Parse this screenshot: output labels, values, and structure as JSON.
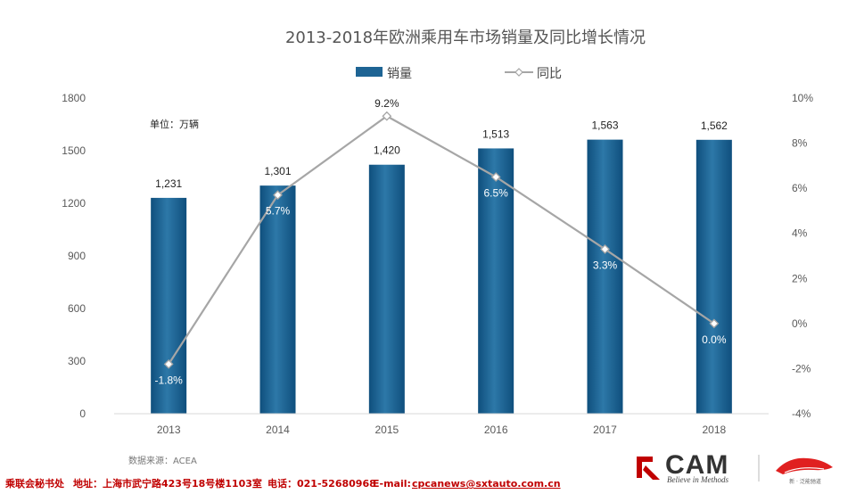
{
  "chart_data": {
    "type": "bar+line",
    "title": "2013-2018年欧洲乘用车市场销量及同比增长情况",
    "unit_label": "单位：万辆",
    "categories": [
      "2013",
      "2014",
      "2015",
      "2016",
      "2017",
      "2018"
    ],
    "series": [
      {
        "name": "销量",
        "type": "bar",
        "axis": "left",
        "values": [
          1231,
          1301,
          1420,
          1513,
          1563,
          1562
        ],
        "labels": [
          "1,231",
          "1,301",
          "1,420",
          "1,513",
          "1,563",
          "1,562"
        ],
        "color": "#1e6494"
      },
      {
        "name": "同比",
        "type": "line",
        "axis": "right",
        "values": [
          -1.8,
          5.7,
          9.2,
          6.5,
          3.3,
          0.0
        ],
        "labels": [
          "-1.8%",
          "5.7%",
          "9.2%",
          "6.5%",
          "3.3%",
          "0.0%"
        ],
        "color": "#a6a6a6"
      }
    ],
    "y_left": {
      "ylim": [
        0,
        1800
      ],
      "ticks": [
        "0",
        "300",
        "600",
        "900",
        "1200",
        "1500",
        "1800"
      ]
    },
    "y_right": {
      "ylim": [
        -4,
        10
      ],
      "ticks": [
        "-4%",
        "-2%",
        "0%",
        "2%",
        "4%",
        "6%",
        "8%",
        "10%"
      ]
    },
    "grid": false,
    "legend": "top-center"
  },
  "source_note": "数据来源：ACEA",
  "footer": {
    "org": "乘联会秘书处",
    "address": "地址：上海市武宁路423号18号楼1103室",
    "phone": "电话：021-52680968",
    "email_label": "E-mail:",
    "email": "cpcanews@sxtauto.com.cn"
  },
  "logos": {
    "cam_text": "CAM",
    "cam_tagline": "Believe in Methods",
    "partner_caption": "新 · 泛能驰道"
  }
}
